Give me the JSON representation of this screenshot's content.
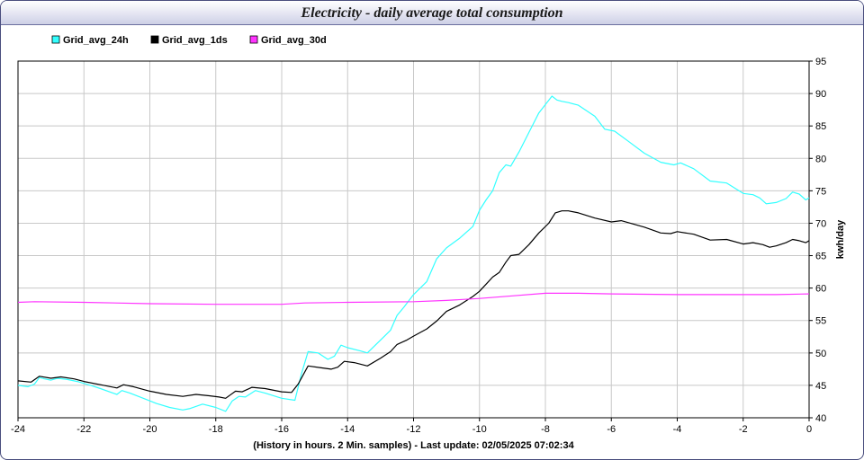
{
  "window": {
    "title": "Electricity - daily average total consumption"
  },
  "chart_data": {
    "type": "line",
    "title": "Electricity - daily average total consumption",
    "xlabel": "(History in hours. 2 Min. samples) - Last update: 02/05/2025 07:02:34",
    "ylabel": "kwh/day",
    "xlim": [
      -24,
      0
    ],
    "ylim": [
      40,
      95
    ],
    "x_ticks": [
      -24,
      -22,
      -20,
      -18,
      -16,
      -14,
      -12,
      -10,
      -8,
      -6,
      -4,
      -2,
      0
    ],
    "y_ticks": [
      40,
      45,
      50,
      55,
      60,
      65,
      70,
      75,
      80,
      85,
      90,
      95
    ],
    "grid": true,
    "legend_position": "top-left",
    "series": [
      {
        "name": "Grid_avg_24h",
        "color": "#33ffff",
        "points": [
          [
            -24,
            45.0
          ],
          [
            -23.7,
            44.8
          ],
          [
            -23.5,
            45.2
          ],
          [
            -23.35,
            46.2
          ],
          [
            -23.2,
            46.0
          ],
          [
            -23.0,
            45.8
          ],
          [
            -22.8,
            46.1
          ],
          [
            -22.5,
            45.9
          ],
          [
            -22.2,
            45.6
          ],
          [
            -21.8,
            45.0
          ],
          [
            -21.5,
            44.5
          ],
          [
            -21.0,
            43.6
          ],
          [
            -20.85,
            44.2
          ],
          [
            -20.6,
            43.8
          ],
          [
            -20.2,
            43.0
          ],
          [
            -19.8,
            42.2
          ],
          [
            -19.4,
            41.6
          ],
          [
            -19.0,
            41.2
          ],
          [
            -18.8,
            41.4
          ],
          [
            -18.4,
            42.1
          ],
          [
            -18.0,
            41.6
          ],
          [
            -17.7,
            41.0
          ],
          [
            -17.5,
            42.6
          ],
          [
            -17.3,
            43.3
          ],
          [
            -17.1,
            43.2
          ],
          [
            -16.8,
            44.2
          ],
          [
            -16.5,
            43.8
          ],
          [
            -16.0,
            43.0
          ],
          [
            -15.6,
            42.7
          ],
          [
            -15.4,
            46.8
          ],
          [
            -15.2,
            50.2
          ],
          [
            -14.9,
            50.0
          ],
          [
            -14.6,
            49.0
          ],
          [
            -14.4,
            49.5
          ],
          [
            -14.2,
            51.2
          ],
          [
            -14.0,
            50.8
          ],
          [
            -13.6,
            50.3
          ],
          [
            -13.4,
            50.0
          ],
          [
            -13.0,
            52.0
          ],
          [
            -12.7,
            53.5
          ],
          [
            -12.5,
            55.8
          ],
          [
            -12.3,
            57.0
          ],
          [
            -12.0,
            59.0
          ],
          [
            -11.6,
            61.0
          ],
          [
            -11.3,
            64.5
          ],
          [
            -11.0,
            66.2
          ],
          [
            -10.6,
            67.7
          ],
          [
            -10.2,
            69.5
          ],
          [
            -10.0,
            72.0
          ],
          [
            -9.8,
            73.6
          ],
          [
            -9.6,
            75.0
          ],
          [
            -9.4,
            77.8
          ],
          [
            -9.2,
            79.0
          ],
          [
            -9.05,
            78.8
          ],
          [
            -8.8,
            81.0
          ],
          [
            -8.5,
            84.0
          ],
          [
            -8.2,
            87.0
          ],
          [
            -7.8,
            89.6
          ],
          [
            -7.65,
            89.0
          ],
          [
            -7.5,
            88.8
          ],
          [
            -7.3,
            88.6
          ],
          [
            -7.0,
            88.2
          ],
          [
            -6.5,
            86.5
          ],
          [
            -6.2,
            84.5
          ],
          [
            -5.9,
            84.2
          ],
          [
            -5.5,
            82.7
          ],
          [
            -5.0,
            80.8
          ],
          [
            -4.5,
            79.4
          ],
          [
            -4.1,
            79.0
          ],
          [
            -3.9,
            79.3
          ],
          [
            -3.5,
            78.4
          ],
          [
            -3.0,
            76.5
          ],
          [
            -2.5,
            76.2
          ],
          [
            -2.0,
            74.6
          ],
          [
            -1.7,
            74.4
          ],
          [
            -1.5,
            73.9
          ],
          [
            -1.3,
            73.0
          ],
          [
            -1.0,
            73.2
          ],
          [
            -0.7,
            73.8
          ],
          [
            -0.5,
            74.8
          ],
          [
            -0.3,
            74.5
          ],
          [
            -0.1,
            73.6
          ],
          [
            0,
            73.9
          ]
        ]
      },
      {
        "name": "Grid_avg_1ds",
        "color": "#000000",
        "points": [
          [
            -24,
            45.7
          ],
          [
            -23.6,
            45.5
          ],
          [
            -23.35,
            46.4
          ],
          [
            -23.0,
            46.1
          ],
          [
            -22.7,
            46.3
          ],
          [
            -22.3,
            46.0
          ],
          [
            -22.0,
            45.6
          ],
          [
            -21.5,
            45.1
          ],
          [
            -21.0,
            44.6
          ],
          [
            -20.8,
            45.1
          ],
          [
            -20.5,
            44.8
          ],
          [
            -20.0,
            44.1
          ],
          [
            -19.5,
            43.6
          ],
          [
            -19.0,
            43.3
          ],
          [
            -18.6,
            43.6
          ],
          [
            -18.2,
            43.4
          ],
          [
            -17.9,
            43.2
          ],
          [
            -17.7,
            43.0
          ],
          [
            -17.4,
            44.1
          ],
          [
            -17.2,
            44.0
          ],
          [
            -16.9,
            44.7
          ],
          [
            -16.5,
            44.5
          ],
          [
            -16.0,
            44.0
          ],
          [
            -15.7,
            43.9
          ],
          [
            -15.5,
            45.2
          ],
          [
            -15.2,
            48.0
          ],
          [
            -14.8,
            47.7
          ],
          [
            -14.5,
            47.5
          ],
          [
            -14.3,
            47.8
          ],
          [
            -14.1,
            48.7
          ],
          [
            -13.8,
            48.5
          ],
          [
            -13.4,
            48.0
          ],
          [
            -13.0,
            49.2
          ],
          [
            -12.7,
            50.2
          ],
          [
            -12.5,
            51.3
          ],
          [
            -12.2,
            52.0
          ],
          [
            -12.0,
            52.6
          ],
          [
            -11.6,
            53.7
          ],
          [
            -11.3,
            54.9
          ],
          [
            -11.0,
            56.4
          ],
          [
            -10.6,
            57.4
          ],
          [
            -10.2,
            58.7
          ],
          [
            -10.0,
            59.5
          ],
          [
            -9.8,
            60.6
          ],
          [
            -9.6,
            61.7
          ],
          [
            -9.4,
            62.4
          ],
          [
            -9.2,
            64.0
          ],
          [
            -9.05,
            65.0
          ],
          [
            -8.8,
            65.2
          ],
          [
            -8.5,
            66.7
          ],
          [
            -8.2,
            68.5
          ],
          [
            -7.9,
            70.0
          ],
          [
            -7.7,
            71.6
          ],
          [
            -7.5,
            71.9
          ],
          [
            -7.3,
            71.9
          ],
          [
            -7.0,
            71.6
          ],
          [
            -6.5,
            70.8
          ],
          [
            -6.0,
            70.2
          ],
          [
            -5.7,
            70.4
          ],
          [
            -5.0,
            69.4
          ],
          [
            -4.5,
            68.5
          ],
          [
            -4.2,
            68.4
          ],
          [
            -4.0,
            68.7
          ],
          [
            -3.5,
            68.3
          ],
          [
            -3.0,
            67.4
          ],
          [
            -2.5,
            67.5
          ],
          [
            -2.0,
            66.8
          ],
          [
            -1.7,
            67.0
          ],
          [
            -1.4,
            66.7
          ],
          [
            -1.2,
            66.3
          ],
          [
            -1.0,
            66.5
          ],
          [
            -0.7,
            67.0
          ],
          [
            -0.5,
            67.5
          ],
          [
            -0.3,
            67.3
          ],
          [
            -0.1,
            67.0
          ],
          [
            0,
            67.3
          ]
        ]
      },
      {
        "name": "Grid_avg_30d",
        "color": "#ff33ff",
        "points": [
          [
            -24,
            57.8
          ],
          [
            -23.5,
            57.9
          ],
          [
            -22,
            57.8
          ],
          [
            -20,
            57.6
          ],
          [
            -18,
            57.5
          ],
          [
            -16,
            57.5
          ],
          [
            -15.3,
            57.7
          ],
          [
            -14,
            57.8
          ],
          [
            -12,
            57.9
          ],
          [
            -11,
            58.1
          ],
          [
            -10,
            58.4
          ],
          [
            -9,
            58.8
          ],
          [
            -8,
            59.2
          ],
          [
            -7,
            59.2
          ],
          [
            -6,
            59.1
          ],
          [
            -4,
            59.0
          ],
          [
            -2,
            59.0
          ],
          [
            -1,
            59.0
          ],
          [
            0,
            59.1
          ]
        ]
      }
    ]
  }
}
